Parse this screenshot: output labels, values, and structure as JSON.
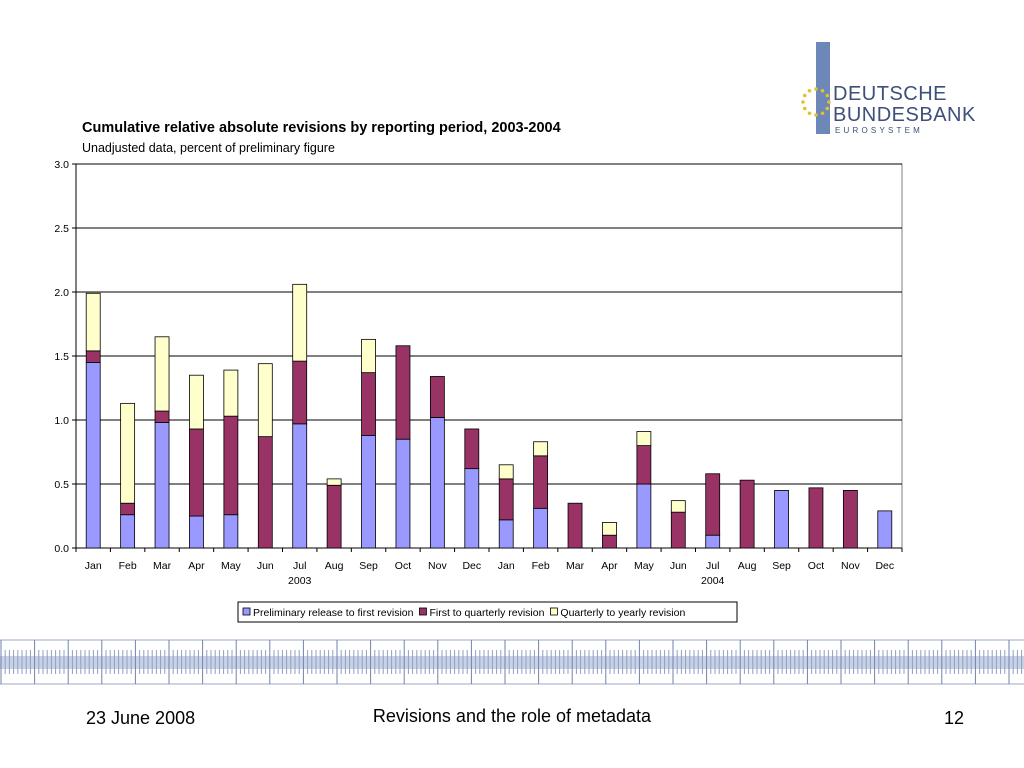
{
  "logo": {
    "line1": "DEUTSCHE",
    "line2": "BUNDESBANK",
    "line3": "EUROSYSTEM",
    "bar_color": "#6d87b8",
    "text_color": "#3d4f7a",
    "star_color": "#e3c02e"
  },
  "chart_data": {
    "type": "bar",
    "stacked": true,
    "title": "Cumulative relative absolute revisions by reporting period, 2003-2004",
    "subtitle": "Unadjusted data, percent of preliminary figure",
    "categories": [
      "Jan",
      "Feb",
      "Mar",
      "Apr",
      "May",
      "Jun",
      "Jul",
      "Aug",
      "Sep",
      "Oct",
      "Nov",
      "Dec",
      "Jan",
      "Feb",
      "Mar",
      "Apr",
      "May",
      "Jun",
      "Jul",
      "Aug",
      "Sep",
      "Oct",
      "Nov",
      "Dec"
    ],
    "year_labels": [
      {
        "category_index": 6,
        "label": "2003"
      },
      {
        "category_index": 18,
        "label": "2004"
      }
    ],
    "ylim": [
      0,
      3.0
    ],
    "yticks": [
      "0.0",
      "0.5",
      "1.0",
      "1.5",
      "2.0",
      "2.5",
      "3.0"
    ],
    "grid": true,
    "legend_position": "bottom",
    "series": [
      {
        "name": "Preliminary release to first revision",
        "color": "#9999ff",
        "values": [
          1.45,
          0.26,
          0.98,
          0.25,
          0.26,
          0.0,
          0.97,
          0.0,
          0.88,
          0.85,
          1.02,
          0.62,
          0.22,
          0.31,
          0.0,
          0.0,
          0.5,
          0.0,
          0.1,
          0.0,
          0.45,
          0.0,
          0.0,
          0.29
        ]
      },
      {
        "name": "First to quarterly revision",
        "color": "#993366",
        "values": [
          0.09,
          0.09,
          0.09,
          0.68,
          0.77,
          0.87,
          0.49,
          0.49,
          0.49,
          0.73,
          0.32,
          0.31,
          0.32,
          0.41,
          0.35,
          0.1,
          0.3,
          0.28,
          0.48,
          0.53,
          0.0,
          0.47,
          0.45,
          0.0
        ]
      },
      {
        "name": "Quarterly to yearly revision",
        "color": "#ffffcc",
        "values": [
          0.45,
          0.78,
          0.58,
          0.42,
          0.36,
          0.57,
          0.6,
          0.05,
          0.26,
          0.0,
          0.0,
          0.0,
          0.11,
          0.11,
          0.0,
          0.1,
          0.11,
          0.09,
          0.0,
          0.0,
          0.0,
          0.0,
          0.0,
          0.0
        ]
      }
    ]
  },
  "footer": {
    "date": "23 June 2008",
    "title": "Revisions and the role of metadata",
    "page": "12"
  }
}
